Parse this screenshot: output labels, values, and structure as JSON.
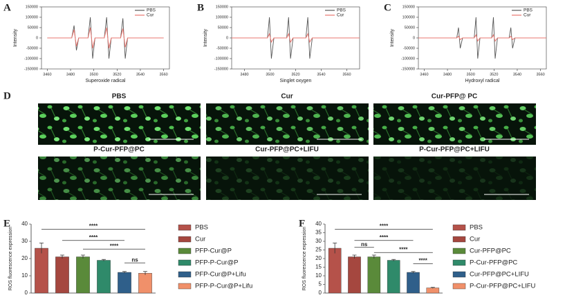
{
  "chart_data": [
    {
      "type": "line",
      "label": "A",
      "xlabel": "Superoxide radical",
      "ylabel": "Intensity",
      "x": [
        3460,
        3481,
        3483,
        3485,
        3487,
        3495,
        3497,
        3499,
        3501,
        3509,
        3511,
        3513,
        3515,
        3523,
        3525,
        3527,
        3529,
        3560
      ],
      "xlim": [
        3455,
        3565
      ],
      "xticks": [
        3460,
        3480,
        3500,
        3520,
        3540,
        3560
      ],
      "ylim": [
        -150000,
        150000
      ],
      "yticks": [
        -150000,
        -100000,
        -50000,
        0,
        50000,
        100000,
        150000
      ],
      "series": [
        {
          "name": "PBS",
          "color": "#555555",
          "values": [
            0,
            0,
            60000,
            -60000,
            0,
            0,
            100000,
            -100000,
            0,
            0,
            100000,
            -100000,
            0,
            0,
            95000,
            -100000,
            0,
            0
          ]
        },
        {
          "name": "Cur",
          "color": "#e8766f",
          "values": [
            0,
            0,
            40000,
            -40000,
            0,
            0,
            50000,
            -50000,
            0,
            0,
            50000,
            -50000,
            0,
            0,
            45000,
            -45000,
            0,
            0
          ]
        }
      ]
    },
    {
      "type": "line",
      "label": "B",
      "xlabel": "Singlet oxygen",
      "ylabel": "Intensity",
      "x": [
        3470,
        3498,
        3499.5,
        3501,
        3503,
        3513,
        3514.5,
        3516,
        3518,
        3528,
        3529.5,
        3531,
        3533,
        3570
      ],
      "xlim": [
        3470,
        3570
      ],
      "xticks": [
        3480,
        3500,
        3520,
        3540,
        3560
      ],
      "ylim": [
        -150000,
        150000
      ],
      "yticks": [
        -150000,
        -100000,
        -50000,
        0,
        50000,
        100000,
        150000
      ],
      "series": [
        {
          "name": "PBS",
          "color": "#555555",
          "values": [
            0,
            0,
            100000,
            -100000,
            0,
            0,
            100000,
            -100000,
            0,
            0,
            100000,
            -100000,
            0,
            0
          ]
        },
        {
          "name": "Cur",
          "color": "#e8766f",
          "values": [
            0,
            0,
            20000,
            -20000,
            0,
            0,
            20000,
            -20000,
            0,
            0,
            20000,
            -20000,
            0,
            0
          ]
        }
      ]
    },
    {
      "type": "line",
      "label": "C",
      "xlabel": "Hydroxyl radical",
      "ylabel": "Intensity",
      "x": [
        3455,
        3488,
        3489.5,
        3491,
        3493,
        3503,
        3504.5,
        3506,
        3508,
        3518,
        3519.5,
        3521,
        3523,
        3533,
        3534.5,
        3536,
        3538,
        3565
      ],
      "xlim": [
        3455,
        3565
      ],
      "xticks": [
        3460,
        3480,
        3500,
        3520,
        3540,
        3560
      ],
      "ylim": [
        -150000,
        150000
      ],
      "yticks": [
        -150000,
        -100000,
        -50000,
        0,
        50000,
        100000,
        150000
      ],
      "series": [
        {
          "name": "PBS",
          "color": "#555555",
          "values": [
            0,
            0,
            50000,
            -50000,
            0,
            0,
            100000,
            -100000,
            0,
            0,
            100000,
            -100000,
            0,
            0,
            50000,
            -50000,
            0,
            0
          ]
        },
        {
          "name": "Cur",
          "color": "#e8766f",
          "values": [
            0,
            0,
            8000,
            -8000,
            0,
            0,
            15000,
            -15000,
            0,
            0,
            15000,
            -15000,
            0,
            0,
            8000,
            -8000,
            0,
            0
          ]
        }
      ]
    },
    {
      "type": "bar",
      "label": "E",
      "ylabel": "ROS fluorescence expression",
      "categories": [
        "PBS",
        "Cur",
        "PFP-Cur@P",
        "PFP-P-Cur@P",
        "PFP-Cur@P+Lifu",
        "PFP-P-Cur@P+Lifu"
      ],
      "values": [
        26,
        21,
        21,
        19,
        12,
        11.5
      ],
      "errors": [
        3,
        1,
        1,
        0.5,
        0.5,
        1
      ],
      "colors": [
        "#b5524a",
        "#a5473f",
        "#5a8a3a",
        "#2f8a6a",
        "#2f5f8a",
        "#f0906a"
      ],
      "ylim": [
        0,
        40
      ],
      "yticks": [
        0,
        10,
        20,
        30,
        40
      ],
      "annotations": [
        "****",
        "****",
        "****",
        "ns"
      ]
    },
    {
      "type": "bar",
      "label": "F",
      "ylabel": "ROS fluorescence expression",
      "categories": [
        "PBS",
        "Cur",
        "Cur-PFP@PC",
        "P-Cur-PFP@PC",
        "Cur-PFP@PC+LIFU",
        "P-Cur-PFP@PC+LIFU"
      ],
      "values": [
        26,
        21,
        21,
        19,
        12,
        3
      ],
      "errors": [
        3,
        1,
        1,
        0.5,
        0.5,
        0.3
      ],
      "colors": [
        "#b5524a",
        "#a5473f",
        "#5a8a3a",
        "#2f8a6a",
        "#2f5f8a",
        "#f0906a"
      ],
      "ylim": [
        0,
        40
      ],
      "yticks": [
        0,
        5,
        10,
        15,
        20,
        25,
        30,
        35,
        40
      ],
      "annotations": [
        "****",
        "ns",
        "****",
        "****",
        "****"
      ]
    }
  ],
  "panel_d": {
    "label": "D",
    "images": [
      "PBS",
      "Cur",
      "Cur-PFP@ PC",
      "P-Cur-PFP@PC",
      "Cur-PFP@PC+LIFU",
      "P-Cur-PFP@PC+LIFU"
    ]
  }
}
